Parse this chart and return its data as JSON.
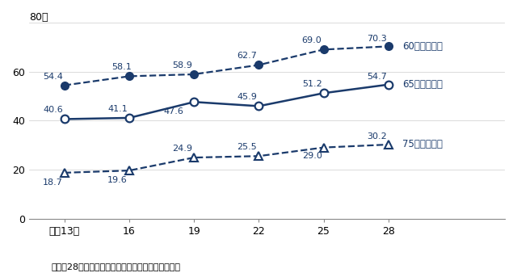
{
  "x_values": [
    0,
    1,
    2,
    3,
    4,
    5
  ],
  "x_labels": [
    "平成13年",
    "16",
    "19",
    "22",
    "25",
    "28"
  ],
  "series_60": [
    54.4,
    58.1,
    58.9,
    62.7,
    69.0,
    70.3
  ],
  "series_65": [
    40.6,
    41.1,
    47.6,
    45.9,
    51.2,
    54.7
  ],
  "series_75": [
    18.7,
    19.6,
    24.9,
    25.5,
    29.0,
    30.2
  ],
  "label_60": "60歳以上同士",
  "label_65": "65歳以上同士",
  "label_75": "75歳以上同士",
  "color_dark": "#1a3a6b",
  "ylim": [
    0,
    80
  ],
  "yticks": [
    0,
    20,
    40,
    60,
    80
  ],
  "note": "注：帧28年の数値は、熊本県を除いたものである。",
  "y_percent_label": "80％",
  "background_color": "#ffffff"
}
